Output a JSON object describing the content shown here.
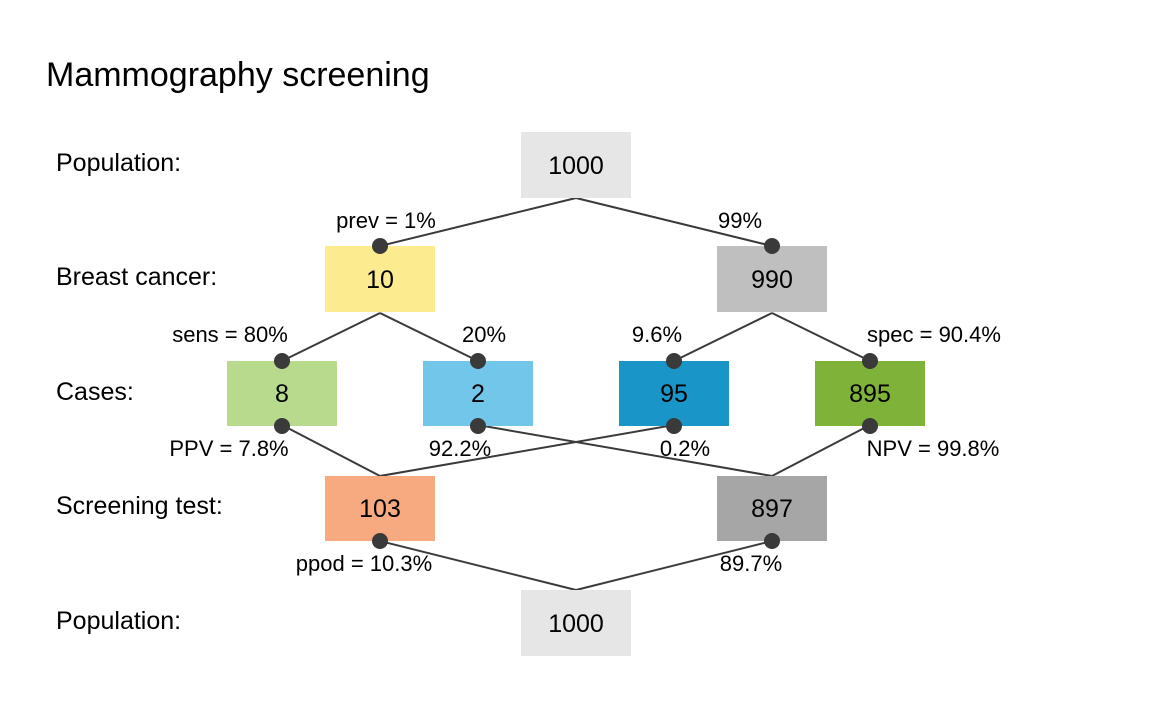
{
  "title": "Mammography screening",
  "row_labels": {
    "top_population": "Population:",
    "condition": "Breast cancer:",
    "cases": "Cases:",
    "test": "Screening test:",
    "bottom_population": "Population:"
  },
  "nodes": {
    "pop_top": {
      "value": "1000",
      "color": "#e6e6e6"
    },
    "cancer_yes": {
      "value": "10",
      "color": "#fdec8f"
    },
    "cancer_no": {
      "value": "990",
      "color": "#bfbfbf"
    },
    "true_pos": {
      "value": "8",
      "color": "#b8da8c"
    },
    "false_neg": {
      "value": "2",
      "color": "#72c6ea"
    },
    "false_pos": {
      "value": "95",
      "color": "#1a95c8"
    },
    "true_neg": {
      "value": "895",
      "color": "#7fb239"
    },
    "test_pos": {
      "value": "103",
      "color": "#f7a97f"
    },
    "test_neg": {
      "value": "897",
      "color": "#a6a6a6"
    },
    "pop_bottom": {
      "value": "1000",
      "color": "#e6e6e6"
    }
  },
  "edge_labels": {
    "prev": "prev = 1%",
    "not_prev": "99%",
    "sens": "sens = 80%",
    "miss": "20%",
    "fpr": "9.6%",
    "spec": "spec = 90.4%",
    "ppv": "PPV = 7.8%",
    "fn_share": "92.2%",
    "fo_share": "0.2%",
    "npv": "NPV = 99.8%",
    "ppod": "ppod = 10.3%",
    "not_ppod": "89.7%"
  },
  "colors": {
    "line": "#3a3a3a",
    "dot": "#3a3a3a"
  }
}
